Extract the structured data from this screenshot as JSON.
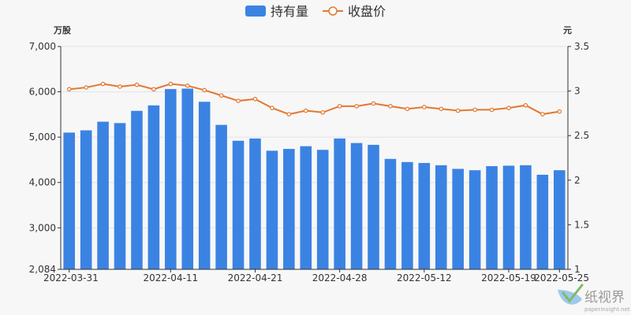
{
  "chart_data": {
    "type": "bar+line",
    "legend": {
      "position": "top-center",
      "items": [
        {
          "name": "持有量",
          "color": "#3b83e3",
          "kind": "bar"
        },
        {
          "name": "收盘价",
          "color": "#e2782f",
          "kind": "line"
        }
      ]
    },
    "left_axis": {
      "unit": "万股",
      "min": 2084,
      "max": 7000,
      "ticks": [
        2084,
        3000,
        4000,
        5000,
        6000,
        7000
      ],
      "tick_labels": [
        "2,084",
        "3,000",
        "4,000",
        "5,000",
        "6,000",
        "7,000"
      ]
    },
    "right_axis": {
      "unit": "元",
      "min": 1,
      "max": 3.5,
      "ticks": [
        1,
        1.5,
        2,
        2.5,
        3,
        3.5
      ],
      "tick_labels": [
        "1",
        "1.5",
        "2",
        "2.5",
        "3",
        "3.5"
      ]
    },
    "x_tick_labels": [
      {
        "index": 0,
        "label": "2022-03-31"
      },
      {
        "index": 6,
        "label": "2022-04-11"
      },
      {
        "index": 11,
        "label": "2022-04-21"
      },
      {
        "index": 16,
        "label": "2022-04-28"
      },
      {
        "index": 21,
        "label": "2022-05-12"
      },
      {
        "index": 26,
        "label": "2022-05-19"
      },
      {
        "index": 29,
        "label": "2022-05-25"
      }
    ],
    "categories": [
      "2022-03-31",
      "",
      "",
      "",
      "",
      "",
      "2022-04-11",
      "",
      "",
      "",
      "",
      "2022-04-21",
      "",
      "",
      "",
      "",
      "2022-04-28",
      "",
      "",
      "",
      "",
      "2022-05-12",
      "",
      "",
      "",
      "",
      "2022-05-19",
      "",
      "",
      "2022-05-25"
    ],
    "series": [
      {
        "name": "持有量",
        "axis": "left",
        "values": [
          5100,
          5150,
          5340,
          5310,
          5580,
          5700,
          6060,
          6070,
          5780,
          5270,
          4920,
          4970,
          4700,
          4740,
          4800,
          4720,
          4970,
          4870,
          4830,
          4520,
          4450,
          4430,
          4380,
          4300,
          4270,
          4360,
          4370,
          4380,
          4170,
          4270
        ]
      },
      {
        "name": "收盘价",
        "axis": "right",
        "values": [
          3.02,
          3.04,
          3.08,
          3.05,
          3.07,
          3.02,
          3.08,
          3.06,
          3.01,
          2.95,
          2.89,
          2.91,
          2.81,
          2.74,
          2.78,
          2.76,
          2.83,
          2.83,
          2.86,
          2.83,
          2.8,
          2.82,
          2.8,
          2.78,
          2.79,
          2.79,
          2.81,
          2.84,
          2.74,
          2.77
        ]
      }
    ],
    "grid": true
  },
  "watermark": {
    "text": "纸视界",
    "subtext": "paperinsight.net"
  }
}
